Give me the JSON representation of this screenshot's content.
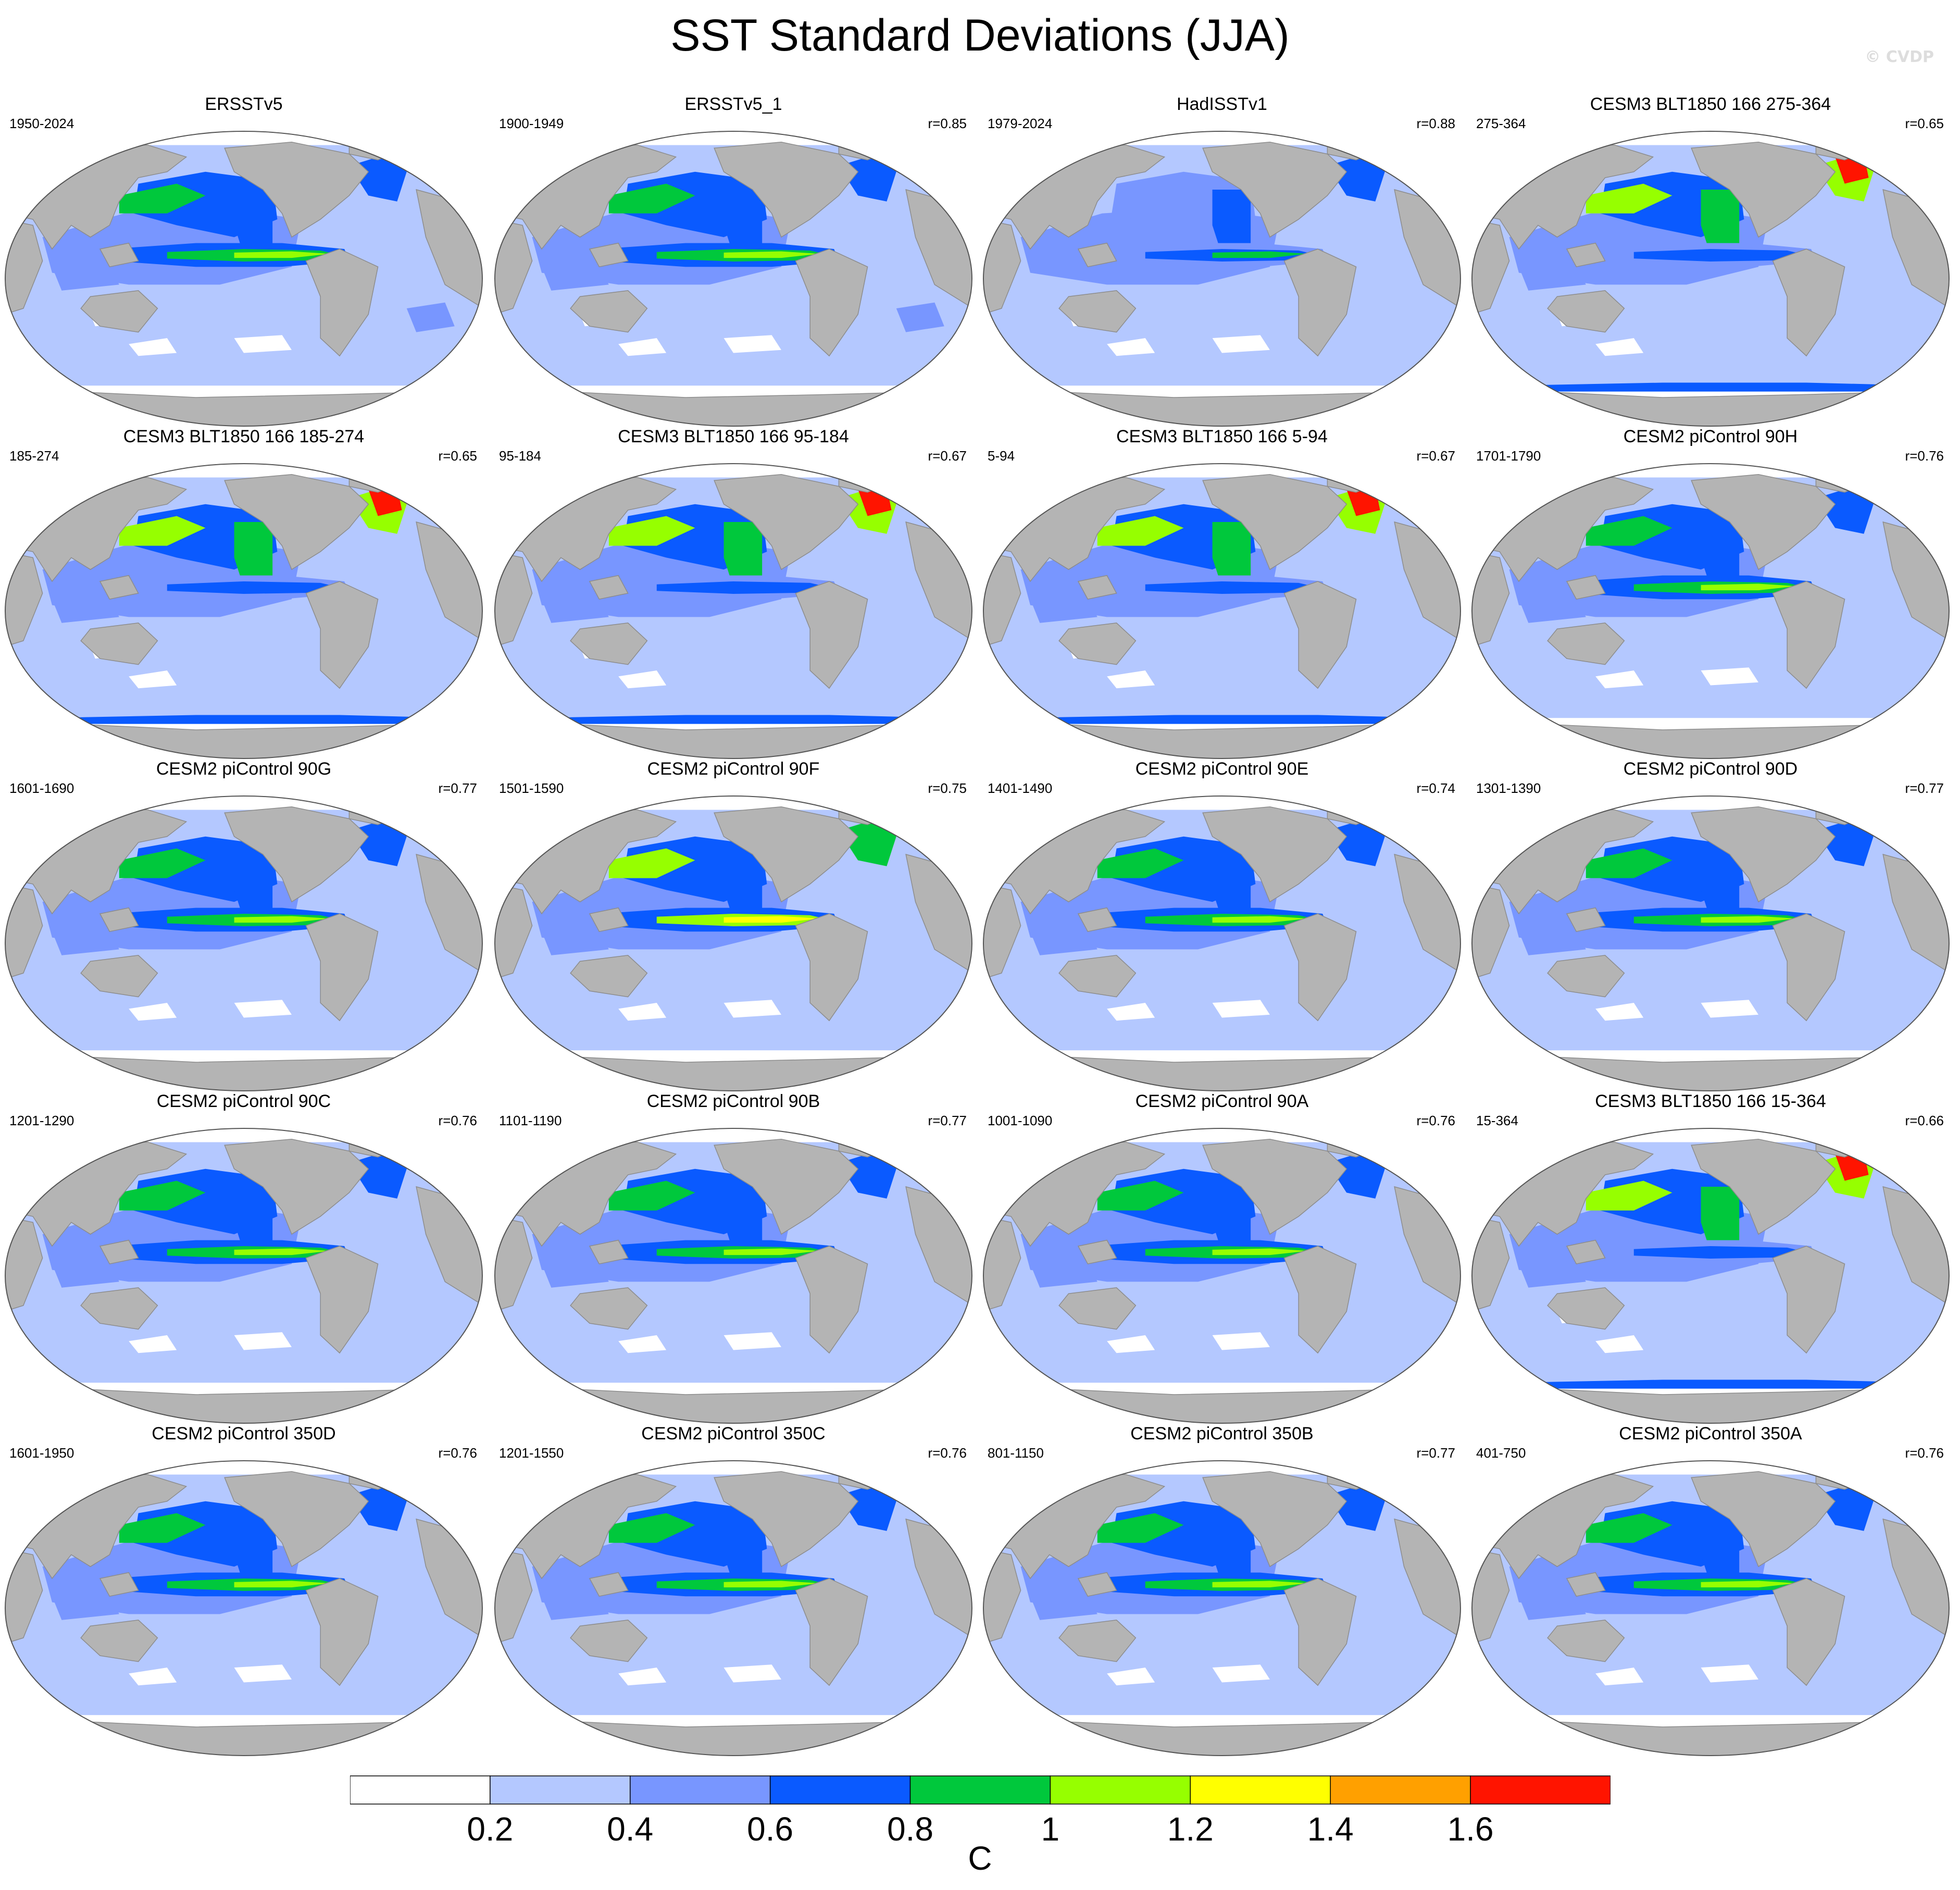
{
  "figure": {
    "title": "SST Standard Deviations (JJA)",
    "watermark": "© CVDP"
  },
  "colors": {
    "land": "#b4b4b4",
    "levels": [
      "#ffffff",
      "#b4c8ff",
      "#7896ff",
      "#0a5aff",
      "#00c83c",
      "#96ff00",
      "#ffff00",
      "#ffa000",
      "#ff1400"
    ]
  },
  "colorbar": {
    "units": "C",
    "tick_labels": [
      "0.2",
      "0.4",
      "0.6",
      "0.8",
      "1",
      "1.2",
      "1.4",
      "1.6"
    ],
    "bins": [
      {
        "upper": 0.2,
        "color": "#ffffff"
      },
      {
        "upper": 0.4,
        "color": "#b4c8ff"
      },
      {
        "upper": 0.6,
        "color": "#7896ff"
      },
      {
        "upper": 0.8,
        "color": "#0a5aff"
      },
      {
        "upper": 1.0,
        "color": "#00c83c"
      },
      {
        "upper": 1.2,
        "color": "#96ff00"
      },
      {
        "upper": 1.4,
        "color": "#ffff00"
      },
      {
        "upper": 1.6,
        "color": "#ffa000"
      },
      {
        "upper": null,
        "color": "#ff1400"
      }
    ]
  },
  "panels": [
    {
      "title": "ERSSTv5",
      "period": "1950-2024",
      "corr": "",
      "style": "obs",
      "max_level": 6
    },
    {
      "title": "ERSSTv5_1",
      "period": "1900-1949",
      "corr": "r=0.85",
      "style": "obs",
      "max_level": 6
    },
    {
      "title": "HadISSTv1",
      "period": "1979-2024",
      "corr": "r=0.88",
      "style": "obs_weak",
      "max_level": 5
    },
    {
      "title": "CESM3 BLT1850 166 275-364",
      "period": "275-364",
      "corr": "r=0.65",
      "style": "cesm3",
      "max_level": 8
    },
    {
      "title": "CESM3 BLT1850 166 185-274",
      "period": "185-274",
      "corr": "r=0.65",
      "style": "cesm3",
      "max_level": 8
    },
    {
      "title": "CESM3 BLT1850 166 95-184",
      "period": "95-184",
      "corr": "r=0.67",
      "style": "cesm3",
      "max_level": 8
    },
    {
      "title": "CESM3 BLT1850 166 5-94",
      "period": "5-94",
      "corr": "r=0.67",
      "style": "cesm3",
      "max_level": 8
    },
    {
      "title": "CESM2 piControl 90H",
      "period": "1701-1790",
      "corr": "r=0.76",
      "style": "cesm2",
      "max_level": 6
    },
    {
      "title": "CESM2 piControl 90G",
      "period": "1601-1690",
      "corr": "r=0.77",
      "style": "cesm2",
      "max_level": 6
    },
    {
      "title": "CESM2 piControl 90F",
      "period": "1501-1590",
      "corr": "r=0.75",
      "style": "cesm2_strong",
      "max_level": 7
    },
    {
      "title": "CESM2 piControl 90E",
      "period": "1401-1490",
      "corr": "r=0.74",
      "style": "cesm2",
      "max_level": 6
    },
    {
      "title": "CESM2 piControl 90D",
      "period": "1301-1390",
      "corr": "r=0.77",
      "style": "cesm2",
      "max_level": 6
    },
    {
      "title": "CESM2 piControl 90C",
      "period": "1201-1290",
      "corr": "r=0.76",
      "style": "cesm2",
      "max_level": 6
    },
    {
      "title": "CESM2 piControl 90B",
      "period": "1101-1190",
      "corr": "r=0.77",
      "style": "cesm2",
      "max_level": 6
    },
    {
      "title": "CESM2 piControl 90A",
      "period": "1001-1090",
      "corr": "r=0.76",
      "style": "cesm2",
      "max_level": 6
    },
    {
      "title": "CESM3 BLT1850 166 15-364",
      "period": "15-364",
      "corr": "r=0.66",
      "style": "cesm3",
      "max_level": 8
    },
    {
      "title": "CESM2 piControl 350D",
      "period": "1601-1950",
      "corr": "r=0.76",
      "style": "cesm2",
      "max_level": 6
    },
    {
      "title": "CESM2 piControl 350C",
      "period": "1201-1550",
      "corr": "r=0.76",
      "style": "cesm2",
      "max_level": 6
    },
    {
      "title": "CESM2 piControl 350B",
      "period": "801-1150",
      "corr": "r=0.77",
      "style": "cesm2",
      "max_level": 6
    },
    {
      "title": "CESM2 piControl 350A",
      "period": "401-750",
      "corr": "r=0.76",
      "style": "cesm2",
      "max_level": 6
    }
  ]
}
